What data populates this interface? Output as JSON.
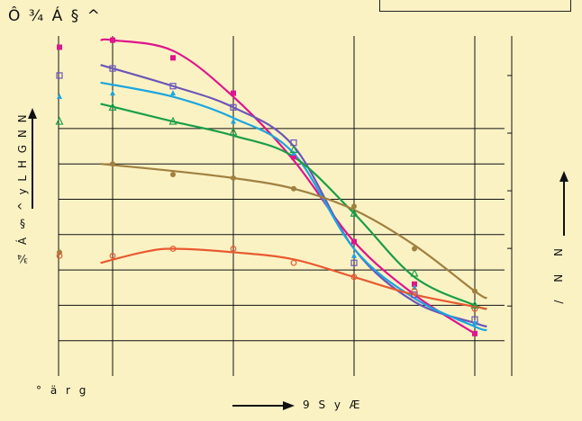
{
  "title": "Ô ¾ Á § ^",
  "ylabel": "¾ Á § ^ y L H G  N N",
  "ylabel_right": "/  N N",
  "x_corner_label": "° ä r g",
  "xlabel": "9 S y Æ",
  "chart_data": {
    "type": "line",
    "title": "Ô ¾ Á § ^",
    "xlabel": "9 S y Æ",
    "ylabel": "¾ Á § ^ y L H G  N N",
    "xlim": [
      0,
      7.5
    ],
    "ylim": [
      0,
      10
    ],
    "grid": true,
    "x_grid": [
      1,
      3,
      5,
      7
    ],
    "y_grid": [
      1,
      2,
      3,
      4,
      5,
      6,
      7
    ],
    "right_ticks": [
      1,
      2,
      3,
      4,
      5
    ],
    "series": [
      {
        "color": "#e0148c",
        "marker": "square-filled",
        "points": [
          [
            0,
            9.3
          ],
          [
            1,
            9.5
          ],
          [
            2,
            9.0
          ],
          [
            3,
            8.0
          ],
          [
            4,
            6.2
          ],
          [
            5,
            3.8
          ],
          [
            6,
            2.6
          ],
          [
            7,
            1.2
          ]
        ],
        "curve": [
          [
            0.8,
            9.5
          ],
          [
            1,
            9.5
          ],
          [
            2,
            9.2
          ],
          [
            3,
            7.9
          ],
          [
            4,
            6.1
          ],
          [
            5,
            3.8
          ],
          [
            6,
            2.3
          ],
          [
            7,
            1.2
          ]
        ]
      },
      {
        "color": "#6b56b8",
        "marker": "square-open",
        "points": [
          [
            0,
            8.5
          ],
          [
            1,
            8.7
          ],
          [
            2,
            8.2
          ],
          [
            3,
            7.6
          ],
          [
            4,
            6.6
          ],
          [
            5,
            3.2
          ],
          [
            6,
            2.3
          ],
          [
            7,
            1.6
          ]
        ],
        "curve": [
          [
            0.8,
            8.8
          ],
          [
            2,
            8.2
          ],
          [
            3,
            7.6
          ],
          [
            4,
            6.5
          ],
          [
            5,
            3.6
          ],
          [
            6,
            2.1
          ],
          [
            7,
            1.5
          ],
          [
            7.2,
            1.4
          ]
        ]
      },
      {
        "color": "#1aa6df",
        "marker": "triangle-filled",
        "points": [
          [
            0,
            7.9
          ],
          [
            1,
            8.0
          ],
          [
            2,
            8.0
          ],
          [
            3,
            7.2
          ],
          [
            4,
            6.3
          ],
          [
            5,
            3.4
          ],
          [
            6,
            2.5
          ],
          [
            7,
            1.5
          ]
        ],
        "curve": [
          [
            0.8,
            8.3
          ],
          [
            2,
            7.9
          ],
          [
            3,
            7.3
          ],
          [
            4,
            6.3
          ],
          [
            5,
            3.6
          ],
          [
            6,
            2.2
          ],
          [
            7,
            1.4
          ],
          [
            7.2,
            1.3
          ]
        ]
      },
      {
        "color": "#1a9e48",
        "marker": "triangle-open",
        "points": [
          [
            0,
            7.2
          ],
          [
            1,
            7.6
          ],
          [
            2,
            7.2
          ],
          [
            3,
            6.9
          ],
          [
            4,
            6.4
          ],
          [
            5,
            4.6
          ],
          [
            6,
            2.9
          ],
          [
            7,
            2.0
          ]
        ],
        "curve": [
          [
            0.8,
            7.7
          ],
          [
            2,
            7.2
          ],
          [
            3,
            6.8
          ],
          [
            4,
            6.2
          ],
          [
            5,
            4.6
          ],
          [
            6,
            2.8
          ],
          [
            7,
            2.0
          ],
          [
            7.2,
            1.9
          ]
        ]
      },
      {
        "color": "#a08040",
        "marker": "circle-filled",
        "points": [
          [
            0,
            3.5
          ],
          [
            1,
            6.0
          ],
          [
            2,
            5.7
          ],
          [
            3,
            5.6
          ],
          [
            4,
            5.3
          ],
          [
            5,
            4.8
          ],
          [
            6,
            3.6
          ],
          [
            7,
            2.4
          ]
        ],
        "curve": [
          [
            0.8,
            6.0
          ],
          [
            2,
            5.8
          ],
          [
            3,
            5.6
          ],
          [
            4,
            5.3
          ],
          [
            5,
            4.7
          ],
          [
            6,
            3.7
          ],
          [
            7,
            2.4
          ],
          [
            7.2,
            2.2
          ]
        ]
      },
      {
        "color": "#e85a30",
        "marker": "circle-open",
        "points": [
          [
            0,
            3.4
          ],
          [
            1,
            3.4
          ],
          [
            2,
            3.6
          ],
          [
            3,
            3.6
          ],
          [
            4,
            3.2
          ],
          [
            5,
            2.8
          ],
          [
            6,
            2.4
          ],
          [
            7,
            1.9
          ]
        ],
        "curve": [
          [
            0.8,
            3.2
          ],
          [
            1.5,
            3.5
          ],
          [
            2,
            3.6
          ],
          [
            3,
            3.5
          ],
          [
            4,
            3.3
          ],
          [
            5,
            2.8
          ],
          [
            6,
            2.3
          ],
          [
            7.2,
            1.9
          ]
        ]
      }
    ]
  }
}
